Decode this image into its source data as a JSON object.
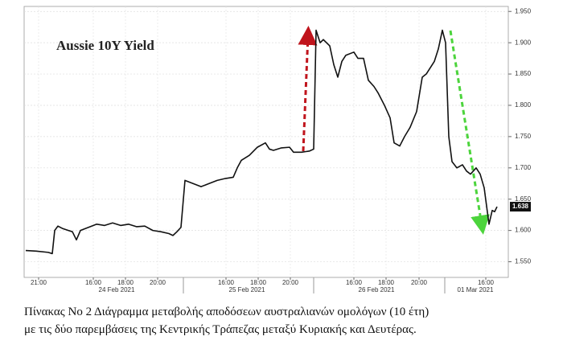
{
  "chart_data": {
    "type": "line",
    "title": "Aussie 10Y Yield",
    "x": [
      32,
      45,
      60,
      65,
      68,
      72,
      78,
      85,
      90,
      95,
      100,
      110,
      120,
      130,
      140,
      150,
      160,
      170,
      180,
      190,
      200,
      210,
      215,
      220,
      225,
      230,
      240,
      250,
      260,
      270,
      280,
      290,
      295,
      300,
      310,
      320,
      330,
      335,
      340,
      350,
      360,
      365,
      375,
      385,
      390,
      393,
      398,
      402,
      410,
      415,
      420,
      425,
      430,
      440,
      445,
      452,
      458,
      465,
      470,
      478,
      485,
      490,
      497,
      503,
      510,
      518,
      525,
      530,
      540,
      545,
      550,
      554,
      558,
      562,
      568,
      575,
      580,
      585,
      592,
      597,
      602,
      608,
      612,
      615,
      618
    ],
    "series": [
      {
        "name": "Aussie 10Y Yield",
        "color": "#111111",
        "values": [
          1.568,
          1.567,
          1.565,
          1.563,
          1.6,
          1.607,
          1.603,
          1.6,
          1.598,
          1.585,
          1.6,
          1.605,
          1.61,
          1.608,
          1.612,
          1.608,
          1.61,
          1.606,
          1.607,
          1.6,
          1.598,
          1.595,
          1.592,
          1.598,
          1.605,
          1.68,
          1.675,
          1.67,
          1.675,
          1.68,
          1.683,
          1.685,
          1.7,
          1.712,
          1.72,
          1.733,
          1.74,
          1.73,
          1.728,
          1.732,
          1.733,
          1.725,
          1.725,
          1.727,
          1.73,
          1.92,
          1.9,
          1.905,
          1.895,
          1.865,
          1.845,
          1.87,
          1.88,
          1.885,
          1.875,
          1.875,
          1.84,
          1.83,
          1.82,
          1.8,
          1.78,
          1.74,
          1.735,
          1.75,
          1.765,
          1.79,
          1.845,
          1.85,
          1.87,
          1.89,
          1.92,
          1.9,
          1.75,
          1.71,
          1.7,
          1.705,
          1.695,
          1.69,
          1.7,
          1.69,
          1.668,
          1.61,
          1.632,
          1.63,
          1.638
        ]
      }
    ],
    "last_value": 1.638,
    "xlim": [
      30,
      632
    ],
    "xticks": [
      {
        "value": 48,
        "label": "21:00"
      },
      {
        "value": 116,
        "label": "16:00"
      },
      {
        "value": 156,
        "label": "18:00"
      },
      {
        "value": 196,
        "label": "20:00"
      },
      {
        "value": 281,
        "label": "16:00"
      },
      {
        "value": 321,
        "label": "18:00"
      },
      {
        "value": 361,
        "label": "20:00"
      },
      {
        "value": 440,
        "label": "16:00"
      },
      {
        "value": 480,
        "label": "18:00"
      },
      {
        "value": 521,
        "label": "20:00"
      },
      {
        "value": 604,
        "label": "16:00"
      }
    ],
    "date_labels": [
      {
        "value": 145,
        "label": "24 Feb 2021"
      },
      {
        "value": 307,
        "label": "25 Feb 2021"
      },
      {
        "value": 468,
        "label": "26 Feb 2021"
      },
      {
        "value": 591,
        "label": "01 Mar 2021"
      }
    ],
    "ylim": [
      1.525,
      1.958
    ],
    "yticks": [
      {
        "value": 1.55,
        "label": "1.550"
      },
      {
        "value": 1.6,
        "label": "1.600"
      },
      {
        "value": 1.65,
        "label": "1.650"
      },
      {
        "value": 1.7,
        "label": "1.700"
      },
      {
        "value": 1.75,
        "label": "1.750"
      },
      {
        "value": 1.8,
        "label": "1.800"
      },
      {
        "value": 1.85,
        "label": "1.850"
      },
      {
        "value": 1.9,
        "label": "1.900"
      },
      {
        "value": 1.95,
        "label": "1.950"
      }
    ],
    "grid": true
  },
  "caption": [
    "Πίνακας Νο 2 Διάγραμμα μεταβολής αποδόσεων αυστραλιανών ομολόγων (10 έτη)",
    "με τις δύο παρεμβάσεις της Κεντρικής Τράπεζας μεταξύ Κυριακής και Δευτέρας."
  ]
}
